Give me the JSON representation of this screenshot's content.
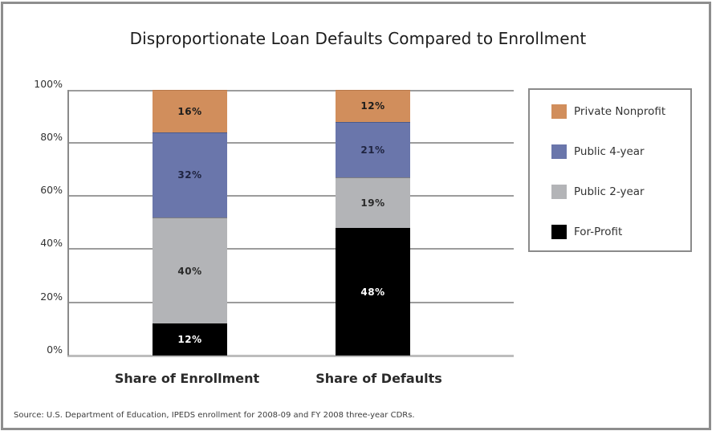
{
  "chart_data": {
    "type": "bar",
    "stacked": true,
    "percent": true,
    "title": "Disproportionate Loan Defaults Compared to Enrollment",
    "xlabel": "",
    "ylabel": "",
    "ylim": [
      0,
      100
    ],
    "yticks": [
      "0%",
      "20%",
      "40%",
      "60%",
      "80%",
      "100%"
    ],
    "categories": [
      "Share of Enrollment",
      "Share of Defaults"
    ],
    "series": [
      {
        "name": "For-Profit",
        "color": "#000000",
        "label_color": "#ffffff",
        "values": [
          12,
          48
        ],
        "labels": [
          "12%",
          "48%"
        ]
      },
      {
        "name": "Public 2-year",
        "color": "#b3b4b7",
        "label_color": "#2a2a2a",
        "values": [
          40,
          19
        ],
        "labels": [
          "40%",
          "19%"
        ]
      },
      {
        "name": "Public 4-year",
        "color": "#6a76ab",
        "label_color": "#1f2440",
        "values": [
          32,
          21
        ],
        "labels": [
          "32%",
          "21%"
        ]
      },
      {
        "name": "Private Nonprofit",
        "color": "#d18e5c",
        "label_color": "#1c1c1c",
        "values": [
          16,
          12
        ],
        "labels": [
          "16%",
          "12%"
        ]
      }
    ],
    "legend": {
      "position": "right",
      "entries": [
        "Private Nonprofit",
        "Public 4-year",
        "Public 2-year",
        "For-Profit"
      ]
    },
    "grid": true,
    "source": "Source: U.S. Department of Education, IPEDS enrollment for 2008-09 and FY 2008 three-year CDRs."
  }
}
